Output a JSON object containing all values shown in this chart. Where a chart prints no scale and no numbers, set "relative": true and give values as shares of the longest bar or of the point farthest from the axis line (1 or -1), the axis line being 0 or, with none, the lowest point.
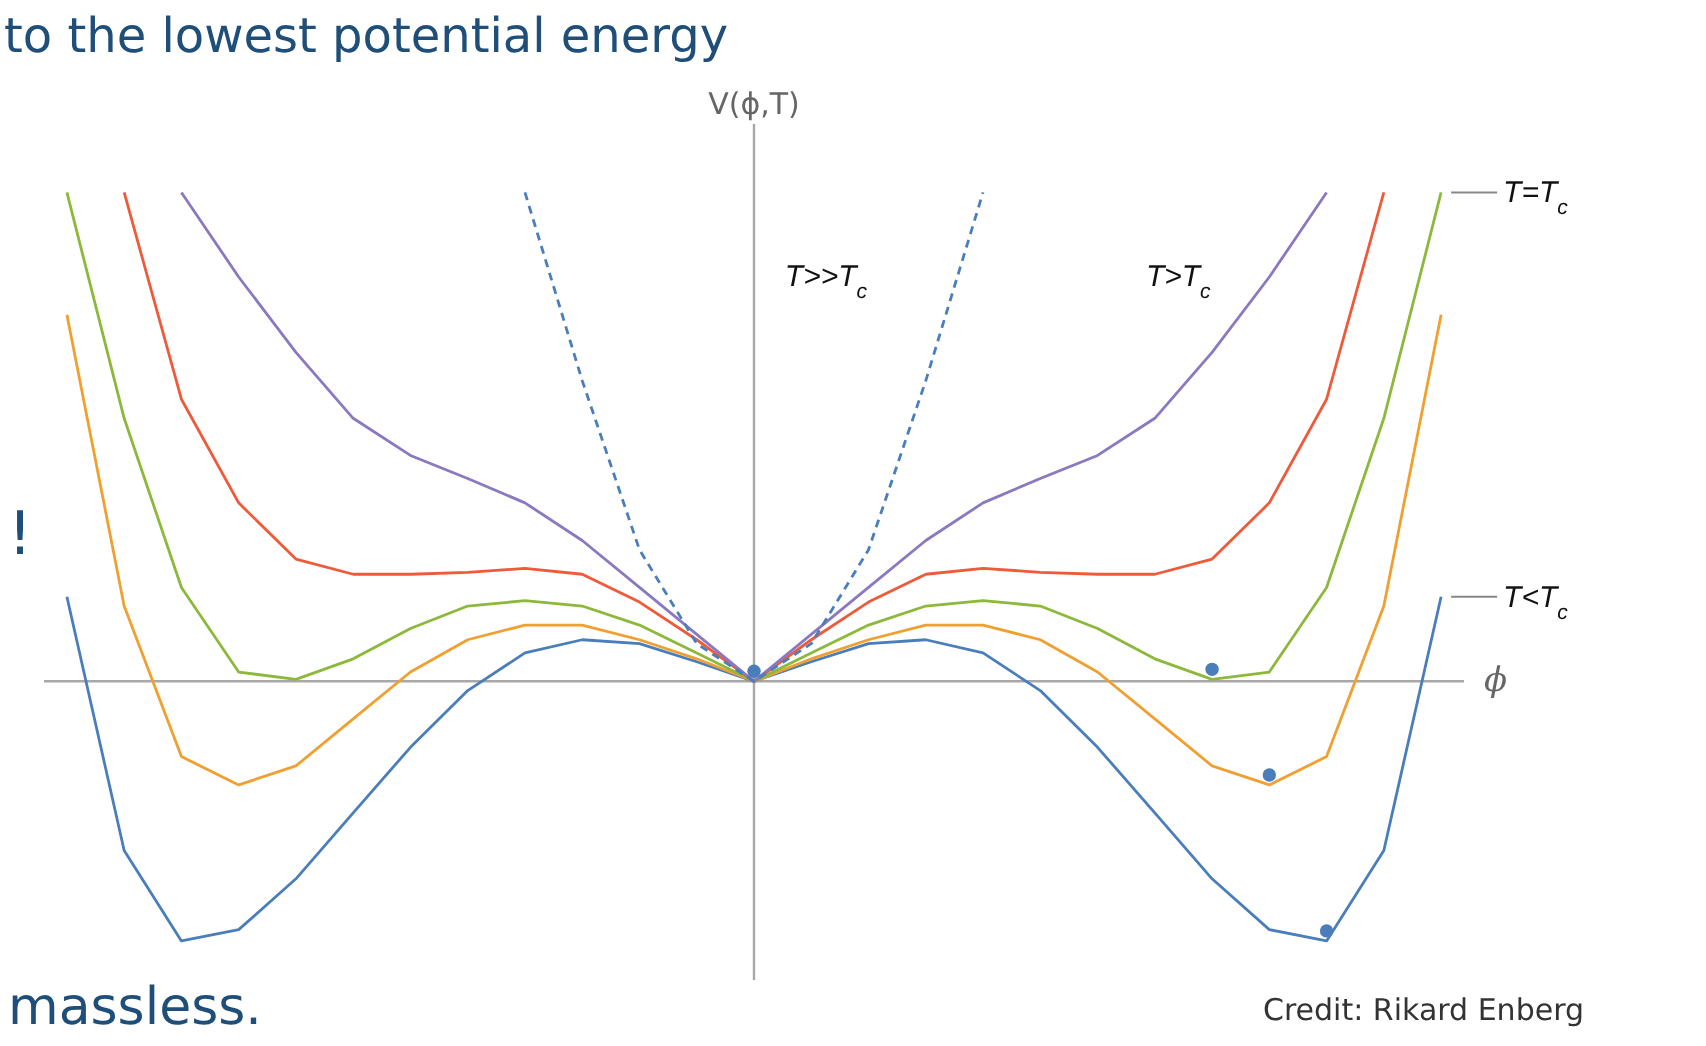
{
  "chart_data": {
    "type": "line",
    "title": "to the lowest potential energy",
    "xlabel": "ϕ",
    "ylabel": "V(ϕ,T)",
    "relative": true,
    "categories": [
      null,
      null,
      null,
      null,
      null,
      null,
      null,
      null,
      null,
      null,
      null,
      null,
      null,
      null,
      null,
      null,
      null,
      null,
      null,
      null,
      null,
      null,
      null,
      null,
      null
    ],
    "series": [
      {
        "name": "T<T$_{c}$",
        "color": "#4a7ebb",
        "values": [
          0.173,
          -0.346,
          -0.531,
          -0.508,
          -0.404,
          -0.269,
          -0.135,
          -0.019,
          0.058,
          0.085,
          0.077,
          0.04,
          0,
          0.04,
          0.077,
          0.085,
          0.058,
          -0.019,
          -0.135,
          -0.269,
          -0.404,
          -0.508,
          -0.531,
          -0.346,
          0.173
        ]
      },
      {
        "color": "#f0a030",
        "values": [
          0.75,
          0.154,
          -0.154,
          -0.212,
          -0.173,
          -0.077,
          0.019,
          0.085,
          0.115,
          0.115,
          0.085,
          0.046,
          0,
          0.046,
          0.085,
          0.115,
          0.115,
          0.085,
          0.019,
          -0.077,
          -0.173,
          -0.212,
          -0.154,
          0.154,
          0.75
        ]
      },
      {
        "name": "T=T$_{c}$",
        "color": "#8cb83c",
        "values": [
          1,
          0.538,
          0.192,
          0.019,
          0.004,
          0.046,
          0.108,
          0.154,
          0.165,
          0.154,
          0.115,
          0.058,
          0,
          0.058,
          0.115,
          0.154,
          0.165,
          0.154,
          0.108,
          0.046,
          0.004,
          0.019,
          0.192,
          0.538,
          1
        ]
      },
      {
        "color": "#ee5a3a",
        "values": [
          null,
          1,
          0.577,
          0.365,
          0.25,
          0.219,
          0.219,
          0.223,
          0.231,
          0.219,
          0.162,
          0.085,
          0,
          0.085,
          0.162,
          0.219,
          0.231,
          0.223,
          0.219,
          0.219,
          0.25,
          0.365,
          0.577,
          1,
          null
        ]
      },
      {
        "name": "T>T$_{c}$",
        "color": "#8a78c0",
        "values": [
          null,
          null,
          1,
          0.827,
          0.673,
          0.538,
          0.462,
          0.415,
          0.365,
          0.288,
          0.192,
          0.096,
          0,
          0.096,
          0.192,
          0.288,
          0.365,
          0.415,
          0.462,
          0.538,
          0.673,
          0.827,
          1,
          null,
          null
        ]
      },
      {
        "name": "T>>T$_{c}$",
        "color": "#4a7ebb",
        "line_style": "dashed",
        "values": [
          null,
          null,
          null,
          null,
          null,
          null,
          null,
          null,
          1,
          0.615,
          0.269,
          0.077,
          0,
          0.077,
          0.269,
          0.615,
          1,
          null,
          null,
          null,
          null,
          null,
          null,
          null,
          null
        ]
      }
    ],
    "annotations": [
      "!",
      "massless.",
      "Credit: Rikard Enberg"
    ]
  }
}
